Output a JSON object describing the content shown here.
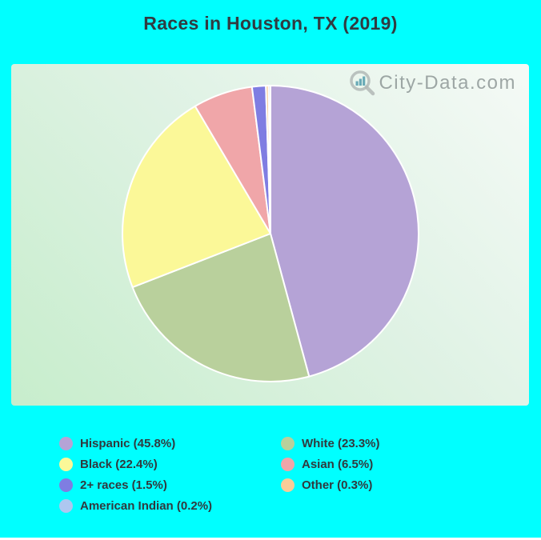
{
  "title": "Races in Houston, TX (2019)",
  "watermark": {
    "text": "City-Data.com",
    "icon": "magnifier-bar-chart-icon"
  },
  "colors": {
    "page_bg": "#00ffff",
    "panel_gradient_top_right": "#f5faf6",
    "panel_gradient_bottom_left": "#c7edcc",
    "slice_stroke": "#ffffff",
    "title_text": "#313b41",
    "legend_text": "#31393e",
    "watermark_text": "#7d8686",
    "watermark_ring": "#b2b8b6",
    "watermark_bars": "#4897a9"
  },
  "chart_data": {
    "type": "pie",
    "title": "Races in Houston, TX (2019)",
    "start_angle_deg": 0,
    "direction": "clockwise",
    "slices": [
      {
        "label": "Hispanic",
        "value": 45.8,
        "color": "#b5a3d6"
      },
      {
        "label": "White",
        "value": 23.3,
        "color": "#b9d09c"
      },
      {
        "label": "Black",
        "value": 22.4,
        "color": "#fbf898"
      },
      {
        "label": "Asian",
        "value": 6.5,
        "color": "#f0a6a9"
      },
      {
        "label": "2+ races",
        "value": 1.5,
        "color": "#7f7de2"
      },
      {
        "label": "Other",
        "value": 0.3,
        "color": "#f9cc98"
      },
      {
        "label": "American Indian",
        "value": 0.2,
        "color": "#aec7f0"
      }
    ],
    "legend": {
      "position": "bottom",
      "columns": 2,
      "order": "row-major",
      "label_format": "{label} ({value}%)"
    }
  }
}
